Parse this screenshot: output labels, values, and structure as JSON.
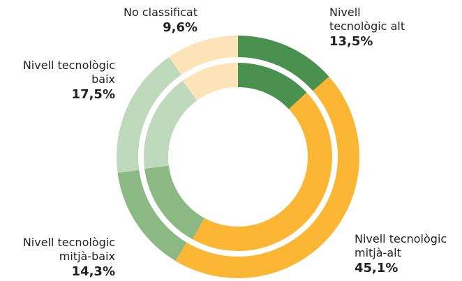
{
  "chart_data": {
    "type": "donut",
    "categories": [
      "Nivell\ntecnològic alt",
      "Nivell tecnològic\nmitjà-alt",
      "Nivell tecnològic\nmitjà-baix",
      "Nivell tecnològic\nbaix",
      "No classificat"
    ],
    "colors": [
      "#4a9150",
      "#fbb634",
      "#8cb884",
      "#bfd9bc",
      "#fde3b8"
    ],
    "series": [
      {
        "values": [
          13.5,
          45.1,
          14.3,
          17.5,
          9.6
        ],
        "value_labels": [
          "13,5%",
          "45,1%",
          "14,3%",
          "17,5%",
          "9,6%"
        ]
      },
      {
        "values": [
          13,
          45,
          15,
          17,
          10
        ]
      }
    ]
  }
}
